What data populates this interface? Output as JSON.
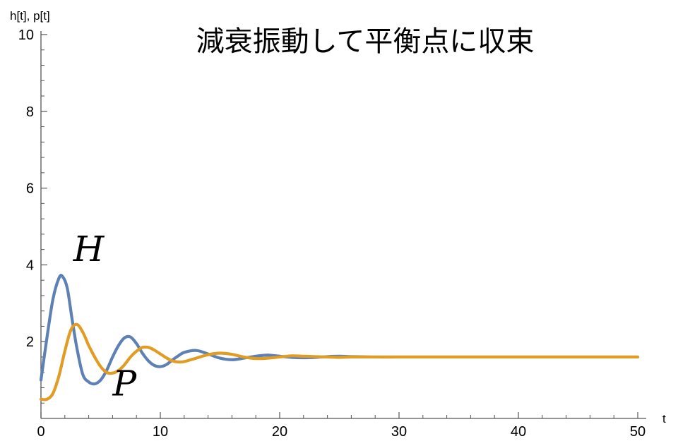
{
  "chart_data": {
    "type": "line",
    "title": "減衰振動して平衡点に収束",
    "xlabel": "t",
    "ylabel": "h[t], p[t]",
    "xlim": [
      0,
      50
    ],
    "ylim": [
      0,
      10
    ],
    "xticks": [
      0,
      10,
      20,
      30,
      40,
      50
    ],
    "yticks": [
      2,
      4,
      6,
      8,
      10
    ],
    "grid": false,
    "annotations": [
      {
        "text": "H",
        "x": 4.0,
        "y": 4.1
      },
      {
        "text": "P",
        "x": 7.0,
        "y": 0.6
      }
    ],
    "series": [
      {
        "name": "H",
        "color": "#5e81b5",
        "x": [
          0,
          0.5,
          1.0,
          1.5,
          1.8,
          2.2,
          2.6,
          3.0,
          3.5,
          4.0,
          4.5,
          5.0,
          5.5,
          6.0,
          6.5,
          7.0,
          7.5,
          8.0,
          8.5,
          9.0,
          9.5,
          10.0,
          10.5,
          11.0,
          11.5,
          12.0,
          13.0,
          14.0,
          15.0,
          16.0,
          17.0,
          18.0,
          19.0,
          20.0,
          21.0,
          22.0,
          23.0,
          24.0,
          25.0,
          26.0,
          28.0,
          30.0,
          32.0,
          35.0,
          40.0,
          45.0,
          50.0
        ],
        "y": [
          1.0,
          2.1,
          3.1,
          3.65,
          3.7,
          3.4,
          2.6,
          1.85,
          1.15,
          0.95,
          0.9,
          1.0,
          1.25,
          1.6,
          1.9,
          2.1,
          2.12,
          1.95,
          1.7,
          1.5,
          1.38,
          1.35,
          1.4,
          1.52,
          1.63,
          1.72,
          1.77,
          1.68,
          1.57,
          1.53,
          1.57,
          1.62,
          1.65,
          1.62,
          1.59,
          1.58,
          1.59,
          1.61,
          1.62,
          1.61,
          1.6,
          1.6,
          1.6,
          1.6,
          1.6,
          1.6,
          1.6
        ]
      },
      {
        "name": "P",
        "color": "#e19c24",
        "x": [
          0,
          0.5,
          1.0,
          1.5,
          2.0,
          2.5,
          3.0,
          3.5,
          4.0,
          4.5,
          5.0,
          5.5,
          6.0,
          6.5,
          7.0,
          7.5,
          8.0,
          8.5,
          9.0,
          9.5,
          10.0,
          10.5,
          11.0,
          11.5,
          12.0,
          13.0,
          14.0,
          15.0,
          16.0,
          17.0,
          18.0,
          19.0,
          20.0,
          21.0,
          22.0,
          23.0,
          24.0,
          25.0,
          26.0,
          28.0,
          30.0,
          32.0,
          35.0,
          40.0,
          45.0,
          50.0
        ],
        "y": [
          0.5,
          0.5,
          0.65,
          1.1,
          1.75,
          2.3,
          2.45,
          2.25,
          1.9,
          1.6,
          1.35,
          1.2,
          1.18,
          1.25,
          1.4,
          1.6,
          1.75,
          1.85,
          1.85,
          1.78,
          1.68,
          1.58,
          1.5,
          1.47,
          1.48,
          1.57,
          1.66,
          1.7,
          1.67,
          1.6,
          1.56,
          1.57,
          1.6,
          1.63,
          1.62,
          1.61,
          1.6,
          1.59,
          1.6,
          1.6,
          1.6,
          1.6,
          1.6,
          1.6,
          1.6,
          1.6
        ]
      }
    ]
  }
}
